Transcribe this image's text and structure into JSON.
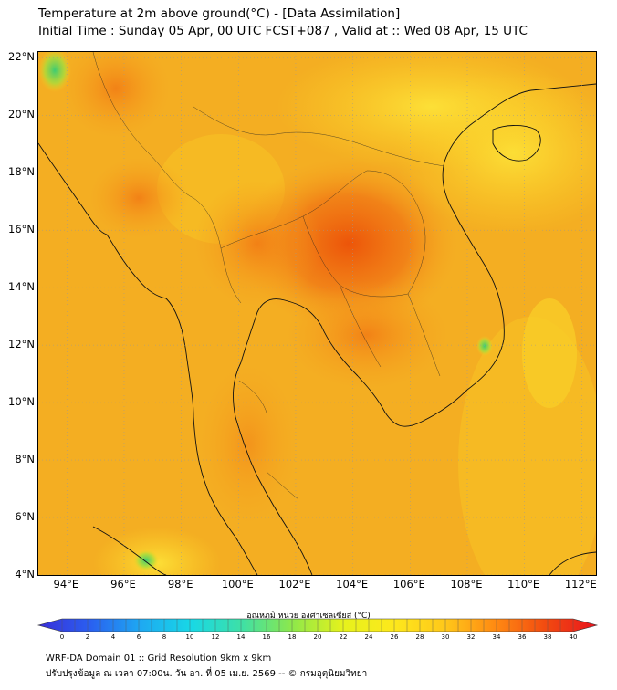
{
  "header": {
    "title_line1": "Temperature at 2m above ground(°C) - [Data Assimilation]",
    "title_line2": "Initial Time : Sunday 05 Apr, 00 UTC FCST+087 , Valid at :: Wed 08 Apr, 15 UTC"
  },
  "map": {
    "lat_labels": [
      "22°N",
      "20°N",
      "18°N",
      "16°N",
      "14°N",
      "12°N",
      "10°N",
      "8°N",
      "6°N",
      "4°N"
    ],
    "lat_values": [
      22,
      20,
      18,
      16,
      14,
      12,
      10,
      8,
      6,
      4
    ],
    "lon_labels": [
      "94°E",
      "96°E",
      "98°E",
      "100°E",
      "102°E",
      "104°E",
      "106°E",
      "108°E",
      "110°E",
      "112°E"
    ],
    "lon_values": [
      94,
      96,
      98,
      100,
      102,
      104,
      106,
      108,
      110,
      112
    ],
    "lon_range": [
      93,
      112.5
    ],
    "lat_range": [
      4,
      22.2
    ],
    "base_color": "#f5b820",
    "hot_color": "#ee5a0c",
    "cool_color": "#44cc66"
  },
  "colorbar": {
    "title": "อุณหภูมิ หน่วย องศาเซลเซียส (°C)",
    "tick_labels": [
      "0",
      "2",
      "4",
      "6",
      "8",
      "10",
      "12",
      "14",
      "16",
      "18",
      "20",
      "22",
      "24",
      "26",
      "28",
      "30",
      "32",
      "34",
      "36",
      "38",
      "40"
    ],
    "range": [
      0,
      40
    ],
    "colors": [
      "#3a2fd8",
      "#2a5ef0",
      "#1ea8f2",
      "#18d8e6",
      "#3ee0a6",
      "#8ee84a",
      "#e6f21c",
      "#fde81c",
      "#ffc81a",
      "#ff8a12",
      "#f24a10",
      "#e8141e"
    ]
  },
  "footer": {
    "line1": "WRF-DA Domain 01 :: Grid Resolution 9km x 9km",
    "line2": "ปรับปรุงข้อมูล ณ เวลา 07:00น. วัน อา. ที่ 05 เม.ย. 2569 -- © กรมอุตุนิยมวิทยา"
  }
}
